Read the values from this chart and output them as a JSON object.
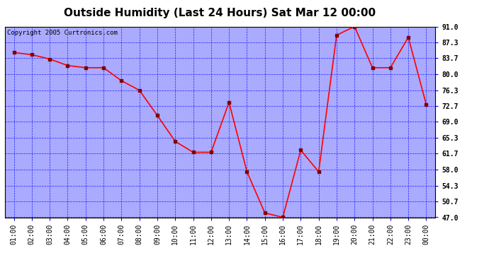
{
  "title": "Outside Humidity (Last 24 Hours) Sat Mar 12 00:00",
  "copyright": "Copyright 2005 Curtronics.com",
  "x_labels": [
    "01:00",
    "02:00",
    "03:00",
    "04:00",
    "05:00",
    "06:00",
    "07:00",
    "08:00",
    "09:00",
    "10:00",
    "11:00",
    "12:00",
    "13:00",
    "14:00",
    "15:00",
    "16:00",
    "17:00",
    "18:00",
    "19:00",
    "20:00",
    "21:00",
    "22:00",
    "23:00",
    "00:00"
  ],
  "x_values": [
    1,
    2,
    3,
    4,
    5,
    6,
    7,
    8,
    9,
    10,
    11,
    12,
    13,
    14,
    15,
    16,
    17,
    18,
    19,
    20,
    21,
    22,
    23,
    24
  ],
  "y_values": [
    85.0,
    84.5,
    83.5,
    82.0,
    81.5,
    81.5,
    78.5,
    76.3,
    70.5,
    64.5,
    62.0,
    62.0,
    73.5,
    57.5,
    48.0,
    47.0,
    62.5,
    57.5,
    89.0,
    91.0,
    81.5,
    81.5,
    88.5,
    73.0
  ],
  "y_ticks": [
    47.0,
    50.7,
    54.3,
    58.0,
    61.7,
    65.3,
    69.0,
    72.7,
    76.3,
    80.0,
    83.7,
    87.3,
    91.0
  ],
  "ylim": [
    47.0,
    91.0
  ],
  "line_color": "red",
  "marker_color": "#800000",
  "bg_color": "#aaaaff",
  "plot_bg_color": "#aaaaff",
  "grid_color": "blue",
  "title_fontsize": 11,
  "copyright_fontsize": 6.5,
  "tick_fontsize": 7,
  "figure_bg": "white"
}
